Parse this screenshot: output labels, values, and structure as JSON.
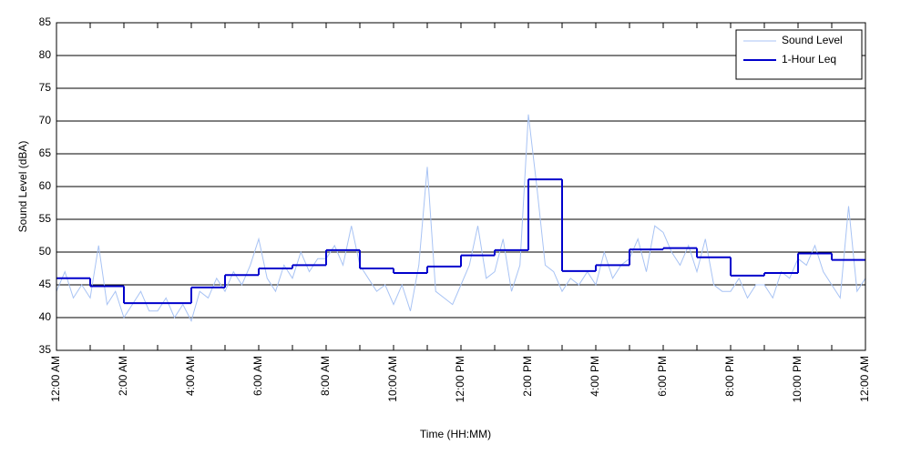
{
  "chart_data": {
    "type": "line",
    "xlabel": "Time (HH:MM)",
    "ylabel": "Sound Level (dBA)",
    "xlim": [
      0,
      24
    ],
    "ylim": [
      35,
      85
    ],
    "yticks": [
      35,
      40,
      45,
      50,
      55,
      60,
      65,
      70,
      75,
      80,
      85
    ],
    "xticks": [
      {
        "value": 0,
        "label": "12:00 AM"
      },
      {
        "value": 2,
        "label": "2:00 AM"
      },
      {
        "value": 4,
        "label": "4:00 AM"
      },
      {
        "value": 6,
        "label": "6:00 AM"
      },
      {
        "value": 8,
        "label": "8:00 AM"
      },
      {
        "value": 10,
        "label": "10:00 AM"
      },
      {
        "value": 12,
        "label": "12:00 PM"
      },
      {
        "value": 14,
        "label": "2:00 PM"
      },
      {
        "value": 16,
        "label": "4:00 PM"
      },
      {
        "value": 18,
        "label": "6:00 PM"
      },
      {
        "value": 20,
        "label": "8:00 PM"
      },
      {
        "value": 22,
        "label": "10:00 PM"
      },
      {
        "value": 24,
        "label": "12:00 AM"
      }
    ],
    "xminorticks": [
      1,
      3,
      5,
      7,
      9,
      11,
      13,
      15,
      17,
      19,
      21,
      23
    ],
    "grid": true,
    "legend": "upper right",
    "series": [
      {
        "name": "Sound Level",
        "color": "#a8c3f4",
        "step": false,
        "x": [
          0,
          0.25,
          0.5,
          0.75,
          1,
          1.25,
          1.5,
          1.75,
          2,
          2.25,
          2.5,
          2.75,
          3,
          3.25,
          3.5,
          3.75,
          4,
          4.25,
          4.5,
          4.75,
          5,
          5.25,
          5.5,
          5.75,
          6,
          6.25,
          6.5,
          6.75,
          7,
          7.25,
          7.5,
          7.75,
          8,
          8.25,
          8.5,
          8.75,
          9,
          9.25,
          9.5,
          9.75,
          10,
          10.25,
          10.5,
          10.75,
          11,
          11.25,
          11.5,
          11.75,
          12,
          12.25,
          12.5,
          12.75,
          13,
          13.25,
          13.5,
          13.75,
          14,
          14.25,
          14.5,
          14.75,
          15,
          15.25,
          15.5,
          15.75,
          16,
          16.25,
          16.5,
          16.75,
          17,
          17.25,
          17.5,
          17.75,
          18,
          18.25,
          18.5,
          18.75,
          19,
          19.25,
          19.5,
          19.75,
          20,
          20.25,
          20.5,
          20.75,
          21,
          21.25,
          21.5,
          21.75,
          22,
          22.25,
          22.5,
          22.75,
          23,
          23.25,
          23.5,
          23.75,
          24
        ],
        "values": [
          44,
          47,
          43,
          45,
          43,
          51,
          42,
          44,
          40,
          42,
          44,
          41,
          41,
          43,
          40,
          42,
          39.5,
          44,
          43,
          46,
          44,
          47,
          45,
          48,
          52,
          46,
          44,
          48,
          46,
          50,
          47,
          49,
          49,
          51,
          48,
          54,
          48,
          46,
          44,
          45,
          42,
          45,
          41,
          48,
          63,
          44,
          43,
          42,
          45,
          48,
          54,
          46,
          47,
          52,
          44,
          48,
          71,
          60,
          48,
          47,
          44,
          46,
          45,
          47,
          45,
          50,
          46,
          48,
          49,
          52,
          47,
          54,
          53,
          50,
          48,
          51,
          47,
          52,
          45,
          44,
          44,
          46,
          43,
          45,
          45,
          43,
          47,
          46,
          49,
          48,
          51,
          47,
          45,
          43,
          57,
          44,
          46
        ]
      },
      {
        "name": "1-Hour Leq",
        "color": "#0000cc",
        "step": true,
        "x": [
          0,
          1,
          2,
          3,
          4,
          5,
          6,
          7,
          8,
          9,
          10,
          11,
          12,
          13,
          14,
          15,
          16,
          17,
          18,
          19,
          20,
          21,
          22,
          23
        ],
        "values": [
          46,
          44.8,
          42.2,
          42.2,
          44.6,
          46.5,
          47.5,
          48,
          50.3,
          47.5,
          46.8,
          47.8,
          49.5,
          50.3,
          61.1,
          47.1,
          48,
          50.4,
          50.6,
          49.2,
          46.4,
          46.8,
          49.8,
          48.8
        ]
      }
    ]
  }
}
